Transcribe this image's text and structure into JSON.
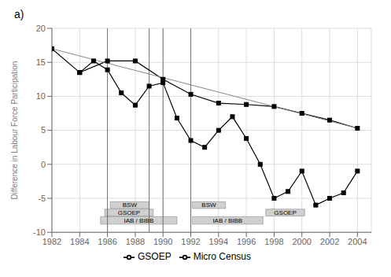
{
  "chart_data": {
    "type": "line",
    "title": "a)",
    "y_label": "Difference in Labour Force Participation",
    "xlim": [
      1982,
      2005
    ],
    "xticks": [
      1982,
      1984,
      1986,
      1988,
      1990,
      1992,
      1994,
      1996,
      1998,
      2000,
      2002,
      2004
    ],
    "ylim": [
      -10,
      20
    ],
    "yticks": [
      -10,
      -5,
      0,
      5,
      10,
      15,
      20
    ],
    "grid": true,
    "legend": "bottom",
    "series": [
      {
        "name": "GSOEP",
        "x": [
          1984,
          1985,
          1986,
          1987,
          1988,
          1989,
          1990,
          1991,
          1992,
          1993,
          1994,
          1995,
          1996,
          1997,
          1998,
          1999,
          2000,
          2001,
          2002,
          2003,
          2004
        ],
        "values": [
          13.5,
          15.2,
          13.9,
          10.5,
          8.7,
          11.5,
          12.0,
          6.8,
          3.5,
          2.5,
          5.0,
          7.0,
          3.8,
          0.0,
          -5.0,
          -4.0,
          -1.0,
          -6.0,
          -5.0,
          -4.2,
          -1.0
        ],
        "color": "#000000",
        "marker": "square"
      },
      {
        "name": "Micro Census",
        "x": [
          1982,
          1984,
          1986,
          1988,
          1990,
          1992,
          1994,
          1996,
          1998,
          2000,
          2002,
          2004
        ],
        "values": [
          17.0,
          13.5,
          15.2,
          15.2,
          12.5,
          10.3,
          9.0,
          8.8,
          8.5,
          7.5,
          6.5,
          5.3
        ],
        "color": "#000000",
        "marker": "square"
      },
      {
        "x": [
          1982,
          2004
        ],
        "values": [
          17.0,
          5.3
        ],
        "color": "#888888",
        "marker": "none"
      }
    ],
    "vlines": [
      {
        "x": 1986,
        "color": "#555555"
      },
      {
        "x": 1989,
        "color": "#555555"
      },
      {
        "x": 1990,
        "color": "#555555"
      },
      {
        "x": 1992,
        "color": "#555555"
      }
    ],
    "annotations": [
      {
        "label": "BSW",
        "x0": 1986.2,
        "x1": 1989.0,
        "y0": -6.5,
        "y1": -5.5,
        "color": "#d0d0d0",
        "edge_color": "#888888"
      },
      {
        "label": "GSOEP",
        "x0": 1985.8,
        "x1": 1989.3,
        "y0": -7.6,
        "y1": -6.6,
        "color": "#d0d0d0",
        "edge_color": "#888888"
      },
      {
        "label": "IAB / BIBB",
        "x0": 1985.5,
        "x1": 1991.0,
        "y0": -8.8,
        "y1": -7.7,
        "color": "#d0d0d0",
        "edge_color": "#888888"
      },
      {
        "label": "BSW",
        "x0": 1992.1,
        "x1": 1994.5,
        "y0": -6.5,
        "y1": -5.5,
        "color": "#d0d0d0",
        "edge_color": "#888888"
      },
      {
        "label": "IAB / BIBB",
        "x0": 1992.1,
        "x1": 1997.2,
        "y0": -8.8,
        "y1": -7.7,
        "color": "#d0d0d0",
        "edge_color": "#888888"
      },
      {
        "label": "GSOEP",
        "x0": 1997.4,
        "x1": 2000.2,
        "y0": -7.6,
        "y1": -6.6,
        "color": "#d0d0d0",
        "edge_color": "#888888"
      }
    ]
  }
}
